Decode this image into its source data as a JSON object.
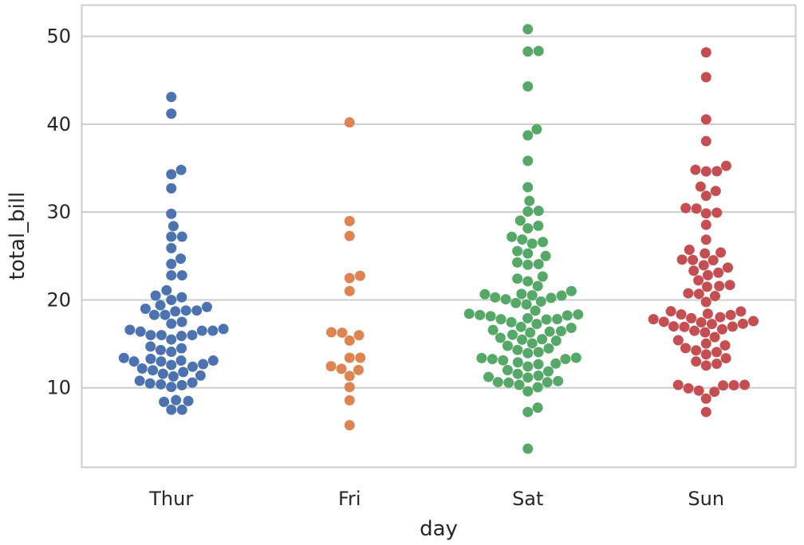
{
  "chart_data": {
    "type": "scatter",
    "subtype": "swarm",
    "title": "",
    "xlabel": "day",
    "ylabel": "total_bill",
    "categories": [
      "Thur",
      "Fri",
      "Sat",
      "Sun"
    ],
    "ylim": [
      1.0,
      53.5
    ],
    "yticks": [
      10,
      20,
      30,
      40,
      50
    ],
    "grid": "horizontal",
    "colors": {
      "Thur": "#4c72b0",
      "Fri": "#dd8452",
      "Sat": "#55a868",
      "Sun": "#c44e52",
      "grid": "#cccccc",
      "frame": "#cccccc",
      "text": "#262626"
    },
    "series": [
      {
        "name": "Thur",
        "values": [
          43.1,
          41.2,
          34.8,
          34.3,
          32.7,
          29.8,
          28.4,
          27.2,
          27.2,
          25.9,
          24.7,
          24.1,
          22.8,
          22.8,
          21.1,
          20.5,
          20.3,
          20.0,
          19.4,
          19.2,
          19.0,
          18.8,
          18.8,
          18.7,
          18.3,
          18.3,
          17.5,
          17.3,
          16.7,
          16.6,
          16.5,
          16.5,
          16.4,
          16.0,
          16.0,
          16.0,
          15.9,
          15.5,
          14.7,
          14.5,
          14.3,
          14.1,
          13.4,
          13.3,
          13.1,
          13.1,
          13.0,
          13.0,
          12.7,
          12.6,
          12.4,
          12.2,
          12.0,
          11.8,
          11.6,
          11.4,
          11.3,
          10.8,
          10.6,
          10.5,
          10.4,
          10.3,
          10.1,
          8.6,
          8.5,
          8.4,
          7.5,
          7.5
        ]
      },
      {
        "name": "Fri",
        "values": [
          40.2,
          28.97,
          27.28,
          22.75,
          22.49,
          21.01,
          16.32,
          16.27,
          15.98,
          15.38,
          13.42,
          13.42,
          12.46,
          12.16,
          12.03,
          11.35,
          10.09,
          8.58,
          5.75
        ]
      },
      {
        "name": "Sat",
        "values": [
          50.81,
          48.33,
          48.27,
          44.3,
          39.42,
          38.73,
          35.83,
          32.83,
          31.27,
          30.06,
          30.14,
          29.03,
          28.44,
          28.15,
          27.18,
          26.88,
          26.59,
          26.41,
          25.56,
          25.29,
          25.0,
          24.27,
          24.08,
          24.01,
          22.67,
          22.42,
          22.12,
          21.58,
          21.01,
          20.69,
          20.65,
          20.53,
          20.49,
          20.29,
          20.23,
          20.08,
          19.82,
          19.65,
          19.49,
          18.78,
          18.43,
          18.35,
          18.29,
          18.24,
          18.15,
          17.92,
          17.82,
          17.81,
          17.78,
          17.47,
          17.26,
          16.93,
          16.82,
          16.58,
          16.45,
          16.4,
          16.29,
          16.04,
          15.69,
          15.53,
          15.48,
          15.36,
          15.06,
          14.78,
          14.48,
          14.31,
          14.07,
          13.94,
          13.42,
          13.39,
          13.28,
          13.27,
          13.13,
          12.9,
          12.76,
          12.69,
          12.43,
          12.02,
          11.87,
          11.59,
          11.38,
          11.24,
          11.17,
          10.77,
          10.65,
          10.63,
          10.59,
          10.34,
          10.07,
          9.6,
          7.74,
          7.25,
          3.07
        ]
      },
      {
        "name": "Sun",
        "values": [
          48.17,
          45.35,
          40.55,
          38.07,
          35.26,
          34.81,
          34.65,
          34.63,
          32.9,
          32.4,
          31.85,
          30.46,
          30.4,
          29.93,
          29.85,
          28.55,
          26.86,
          25.71,
          25.4,
          25.29,
          24.59,
          24.55,
          24.52,
          23.95,
          23.68,
          23.33,
          23.1,
          22.82,
          22.23,
          21.7,
          21.58,
          21.5,
          20.76,
          20.69,
          20.45,
          19.77,
          18.71,
          18.69,
          18.43,
          18.35,
          18.29,
          18.04,
          17.92,
          17.81,
          17.59,
          17.51,
          17.46,
          17.29,
          17.26,
          16.99,
          16.97,
          16.93,
          16.66,
          16.49,
          16.31,
          15.77,
          15.42,
          15.04,
          14.83,
          14.52,
          14.26,
          14.07,
          13.81,
          13.37,
          13.0,
          12.74,
          12.54,
          10.34,
          10.33,
          10.29,
          10.27,
          9.94,
          9.68,
          9.55,
          8.77,
          7.25
        ]
      }
    ]
  }
}
